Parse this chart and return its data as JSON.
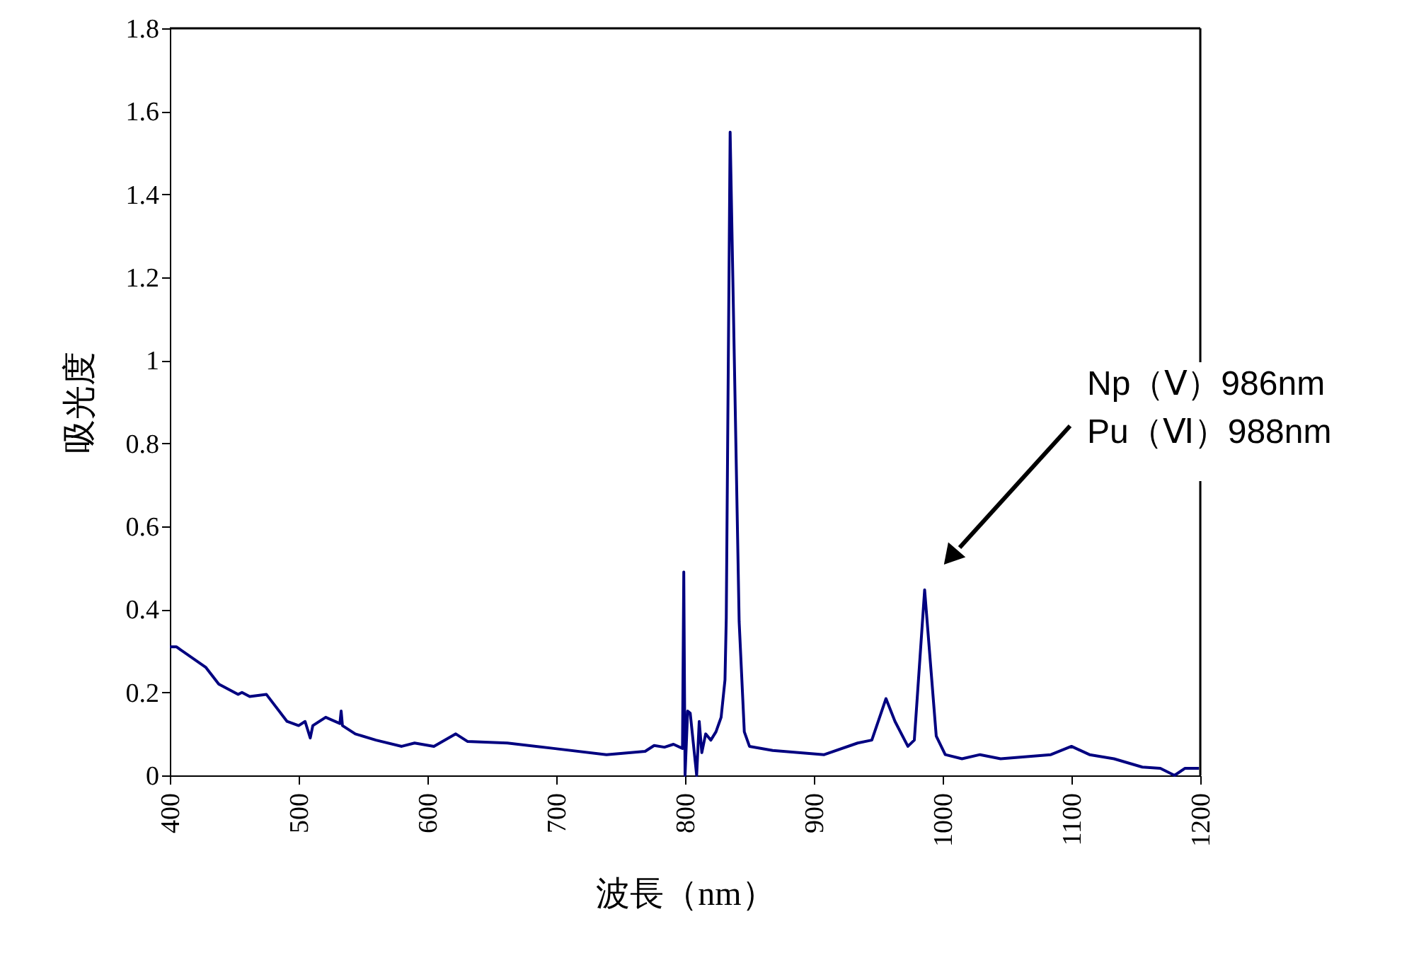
{
  "chart_data": {
    "type": "line",
    "xlabel": "波長（nm）",
    "ylabel": "吸光度",
    "xlim": [
      400,
      1200
    ],
    "xticks": [
      400,
      500,
      600,
      700,
      800,
      900,
      1000,
      1100,
      1200
    ],
    "ylim": [
      0,
      1.8
    ],
    "yticks": [
      0,
      0.2,
      0.4,
      0.6,
      0.8,
      1,
      1.2,
      1.4,
      1.6,
      1.8
    ],
    "grid": false,
    "marker": "none",
    "line_style": "solid",
    "annotations": [
      "Np（Ⅴ）986nm\nPu（Ⅵ）988nm"
    ],
    "series": [
      {
        "color": "#000080",
        "x": [
          400,
          405,
          428,
          438,
          453,
          456,
          462,
          475,
          491,
          500,
          505,
          509,
          511,
          521,
          532,
          533,
          534,
          544,
          560,
          580,
          590,
          605,
          622,
          631,
          662,
          698,
          739,
          769,
          776,
          784,
          791,
          798,
          799,
          800,
          802,
          804,
          809,
          811,
          813,
          816,
          820,
          824,
          828,
          831,
          832,
          835,
          842,
          846,
          850,
          868,
          908,
          934,
          945,
          956,
          963,
          973,
          978,
          986,
          995,
          1002,
          1015,
          1029,
          1045,
          1084,
          1100,
          1114,
          1133,
          1155,
          1169,
          1180,
          1188,
          1199
        ],
        "values": [
          0.31,
          0.31,
          0.26,
          0.22,
          0.195,
          0.2,
          0.19,
          0.195,
          0.13,
          0.12,
          0.13,
          0.09,
          0.12,
          0.14,
          0.125,
          0.155,
          0.12,
          0.1,
          0.085,
          0.07,
          0.078,
          0.07,
          0.1,
          0.082,
          0.078,
          0.065,
          0.05,
          0.058,
          0.072,
          0.068,
          0.075,
          0.065,
          0.49,
          0.0,
          0.155,
          0.15,
          0.0,
          0.13,
          0.055,
          0.1,
          0.085,
          0.105,
          0.14,
          0.23,
          0.38,
          1.55,
          0.37,
          0.105,
          0.07,
          0.06,
          0.05,
          0.078,
          0.085,
          0.185,
          0.13,
          0.07,
          0.085,
          0.447,
          0.095,
          0.05,
          0.04,
          0.05,
          0.04,
          0.05,
          0.07,
          0.05,
          0.04,
          0.02,
          0.017,
          0.0,
          0.017,
          0.017
        ]
      }
    ]
  }
}
